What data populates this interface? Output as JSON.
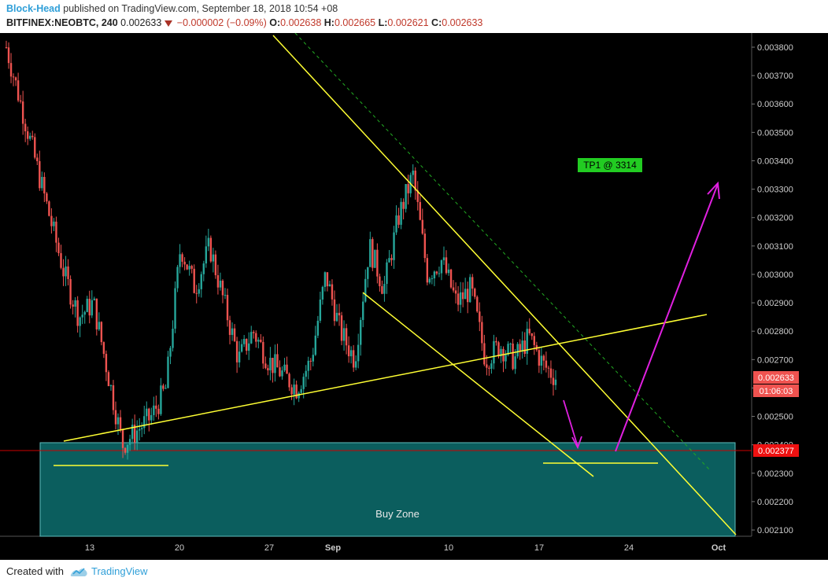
{
  "header": {
    "author": "Block-Head",
    "published_text": "published on TradingView.com, September 18, 2018 10:54 +08",
    "symbol": "BITFINEX:NEOBTC, 240",
    "last": "0.002633",
    "change": "−0.000002 (−0.09%)",
    "o_label": "O:",
    "o_val": "0.002638",
    "h_label": "H:",
    "h_val": "0.002665",
    "l_label": "L:",
    "l_val": "0.002621",
    "c_label": "C:",
    "c_val": "0.002633"
  },
  "footer": {
    "created_with": "Created with",
    "brand": "TradingView"
  },
  "annotations": {
    "buy_zone": "Buy Zone",
    "tp1": "TP1 @ 3314"
  },
  "colors": {
    "background": "#000000",
    "candle_up": "#26a69a",
    "candle_down": "#ef5350",
    "trendline": "#ffff33",
    "arrow": "#e020e0",
    "buy_zone_fill": "#0b5e5e",
    "price_line": "#cc0000",
    "tp_label_bg": "#22cc22",
    "dashed_channel": "#22aa22"
  },
  "chart_data": {
    "type": "candlestick",
    "title": "BITFINEX:NEOBTC, 240",
    "y_ticks": [
      0.0021,
      0.0022,
      0.0023,
      0.0024,
      0.0025,
      0.0026,
      0.0027,
      0.0028,
      0.0029,
      0.003,
      0.0031,
      0.0032,
      0.0033,
      0.0034,
      0.0035,
      0.0036,
      0.0037,
      0.0038
    ],
    "y_tick_labels": [
      "0.002100",
      "0.002200",
      "0.002300",
      "0.002400",
      "0.002500",
      "0.002600",
      "0.002700",
      "0.002800",
      "0.002900",
      "0.003000",
      "0.003100",
      "0.003200",
      "0.003300",
      "0.003400",
      "0.003500",
      "0.003600",
      "0.003700",
      "0.003800"
    ],
    "x_ticks": [
      "13",
      "20",
      "27",
      "Sep",
      "10",
      "17",
      "24",
      "Oct"
    ],
    "current_price": "0.002633",
    "countdown": "01:06:03",
    "price_line": "0.002377",
    "buy_zone_top": 0.0024,
    "ylim": [
      0.00208,
      0.0039
    ],
    "price_path": [
      [
        0.0038,
        0.0036
      ],
      [
        0.0036,
        0.0034
      ],
      [
        0.0034,
        0.0032
      ],
      [
        0.0032,
        0.003
      ],
      [
        0.003,
        0.00285
      ],
      [
        0.00285,
        0.0029
      ],
      [
        0.0029,
        0.00265
      ],
      [
        0.00265,
        0.0024
      ],
      [
        0.0024,
        0.00245
      ],
      [
        0.00245,
        0.0025
      ],
      [
        0.0025,
        0.0026
      ],
      [
        0.0026,
        0.0031
      ],
      [
        0.0031,
        0.00295
      ],
      [
        0.00295,
        0.0031
      ],
      [
        0.0031,
        0.0029
      ],
      [
        0.0029,
        0.0027
      ],
      [
        0.0027,
        0.0028
      ],
      [
        0.0028,
        0.0027
      ],
      [
        0.0027,
        0.00265
      ],
      [
        0.00265,
        0.0026
      ],
      [
        0.0026,
        0.0027
      ],
      [
        0.0027,
        0.003
      ],
      [
        0.003,
        0.0028
      ],
      [
        0.0028,
        0.0027
      ],
      [
        0.0027,
        0.0031
      ],
      [
        0.0031,
        0.00295
      ],
      [
        0.00295,
        0.0032
      ],
      [
        0.0032,
        0.00335
      ],
      [
        0.00335,
        0.003
      ],
      [
        0.003,
        0.00305
      ],
      [
        0.00305,
        0.0029
      ],
      [
        0.0029,
        0.00295
      ],
      [
        0.00295,
        0.0027
      ],
      [
        0.0027,
        0.00275
      ],
      [
        0.00275,
        0.0027
      ],
      [
        0.0027,
        0.00278
      ],
      [
        0.00278,
        0.00268
      ],
      [
        0.00268,
        0.00263
      ]
    ]
  }
}
